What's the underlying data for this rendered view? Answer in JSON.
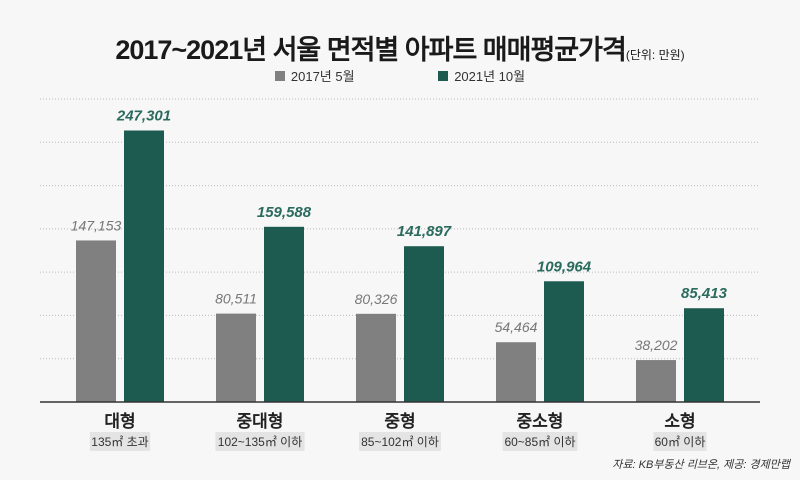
{
  "title": "2017~2021년 서울 면적별 아파트 매매평균가격",
  "unit": "(단위: 만원)",
  "source": "자료: KB부동산 리브온, 제공: 경제만랩",
  "chart_data": {
    "type": "bar",
    "title": "2017~2021년 서울 면적별 아파트 매매평균가격",
    "categories": [
      "대형",
      "중대형",
      "중형",
      "중소형",
      "소형"
    ],
    "subcategories": [
      "135㎡ 초과",
      "102~135㎡ 이하",
      "85~102㎡ 이하",
      "60~85㎡ 이하",
      "60㎡ 이하"
    ],
    "series": [
      {
        "name": "2017년 5월",
        "color": "#808080",
        "values": [
          147153,
          80511,
          80326,
          54464,
          38202
        ],
        "labels": [
          "147,153",
          "80,511",
          "80,326",
          "54,464",
          "38,202"
        ]
      },
      {
        "name": "2021년 10월",
        "color": "#1d5a50",
        "values": [
          247301,
          159588,
          141897,
          109964,
          85413
        ],
        "labels": [
          "247,301",
          "159,588",
          "141,897",
          "109,964",
          "85,413"
        ]
      }
    ],
    "ylim": [
      0,
      276000
    ],
    "grid": true,
    "legend": "top-center"
  }
}
